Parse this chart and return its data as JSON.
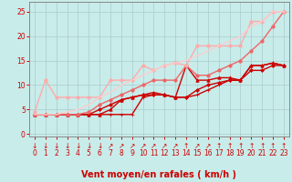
{
  "bg_color": "#c8ecea",
  "grid_color": "#aacccc",
  "xlabel": "Vent moyen/en rafales ( km/h )",
  "xlabel_color": "#cc0000",
  "xlabel_fontsize": 7,
  "yticks": [
    0,
    5,
    10,
    15,
    20,
    25
  ],
  "ylim": [
    -0.5,
    27
  ],
  "xlim": [
    -0.5,
    23.5
  ],
  "xticks": [
    0,
    1,
    2,
    3,
    4,
    5,
    6,
    7,
    8,
    9,
    10,
    11,
    12,
    13,
    14,
    15,
    16,
    17,
    18,
    19,
    20,
    21,
    22,
    23
  ],
  "tick_color": "#cc0000",
  "tick_fontsize": 5.5,
  "arrow_labels": [
    "↓",
    "↓",
    "↓",
    "↓",
    "↓",
    "↓",
    "↓",
    "↗",
    "↗",
    "↗",
    "↗",
    "↗",
    "↗",
    "↗",
    "↑",
    "↗",
    "↗",
    "↑",
    "↑",
    "↑",
    "↑",
    "↑",
    "↑",
    "↑"
  ],
  "series": [
    {
      "x": [
        0,
        1,
        2,
        3,
        4,
        5,
        6,
        7,
        8,
        9,
        10,
        11,
        12,
        13,
        14,
        15,
        16,
        17,
        18,
        19,
        20,
        21,
        22,
        23
      ],
      "y": [
        4,
        4,
        4,
        4,
        4,
        4,
        4,
        4,
        4,
        4,
        7.5,
        8,
        8,
        7.5,
        7.5,
        8,
        9,
        10,
        11,
        11,
        14,
        14,
        14.5,
        14
      ],
      "color": "#cc0000",
      "lw": 1.0,
      "marker": "+",
      "ms": 3
    },
    {
      "x": [
        0,
        1,
        2,
        3,
        4,
        5,
        6,
        7,
        8,
        9,
        10,
        11,
        12,
        13,
        14,
        15,
        16,
        17,
        18,
        19,
        20,
        21,
        22,
        23
      ],
      "y": [
        4,
        4,
        4,
        4,
        4,
        4,
        5,
        6,
        7,
        7.5,
        8,
        8,
        8,
        7.5,
        7.5,
        9,
        10,
        10.5,
        11,
        11,
        13,
        13,
        14,
        14
      ],
      "color": "#cc0000",
      "lw": 1.0,
      "marker": "D",
      "ms": 2
    },
    {
      "x": [
        0,
        1,
        2,
        3,
        4,
        5,
        6,
        7,
        8,
        9,
        10,
        11,
        12,
        13,
        14,
        15,
        16,
        17,
        18,
        19,
        20,
        21,
        22,
        23
      ],
      "y": [
        4,
        4,
        4,
        4,
        4,
        4,
        4,
        5,
        7,
        7.5,
        8,
        8.5,
        8,
        7.5,
        14,
        11,
        11,
        11.5,
        11.5,
        11,
        14,
        14,
        14.5,
        14
      ],
      "color": "#cc0000",
      "lw": 1.0,
      "marker": "^",
      "ms": 2.5
    },
    {
      "x": [
        0,
        1,
        2,
        3,
        4,
        5,
        6,
        7,
        8,
        9,
        10,
        11,
        12,
        13,
        14,
        15,
        16,
        17,
        18,
        19,
        20,
        21,
        22,
        23
      ],
      "y": [
        4,
        4,
        4,
        4,
        4,
        4.5,
        6,
        7,
        8,
        9,
        10,
        11,
        11,
        11,
        14,
        12,
        12,
        13,
        14,
        15,
        17,
        19,
        22,
        25
      ],
      "color": "#ee6666",
      "lw": 1.0,
      "marker": "o",
      "ms": 2.5
    },
    {
      "x": [
        0,
        1,
        2,
        3,
        4,
        5,
        6,
        7,
        8,
        9,
        10,
        11,
        12,
        13,
        14,
        15,
        16,
        17,
        18,
        19,
        20,
        21,
        22,
        23
      ],
      "y": [
        4.5,
        11,
        7.5,
        7.5,
        7.5,
        7.5,
        7.5,
        11,
        11,
        11,
        14,
        13,
        14,
        14.5,
        14,
        18,
        18,
        18,
        18,
        18,
        23,
        23,
        25,
        25
      ],
      "color": "#ffaaaa",
      "lw": 1.0,
      "marker": "o",
      "ms": 2.5
    },
    {
      "x": [
        0,
        1,
        2,
        3,
        4,
        5,
        6,
        7,
        8,
        9,
        10,
        11,
        12,
        13,
        14,
        15,
        16,
        17,
        18,
        19,
        20,
        21,
        22,
        23
      ],
      "y": [
        4,
        4,
        4,
        4.5,
        5,
        6,
        7.5,
        8.5,
        10,
        11,
        12,
        13,
        14,
        14.5,
        15,
        16,
        17,
        18,
        19,
        20,
        22,
        23,
        25,
        25
      ],
      "color": "#ffcccc",
      "lw": 1.0,
      "marker": null,
      "ms": 0
    }
  ]
}
